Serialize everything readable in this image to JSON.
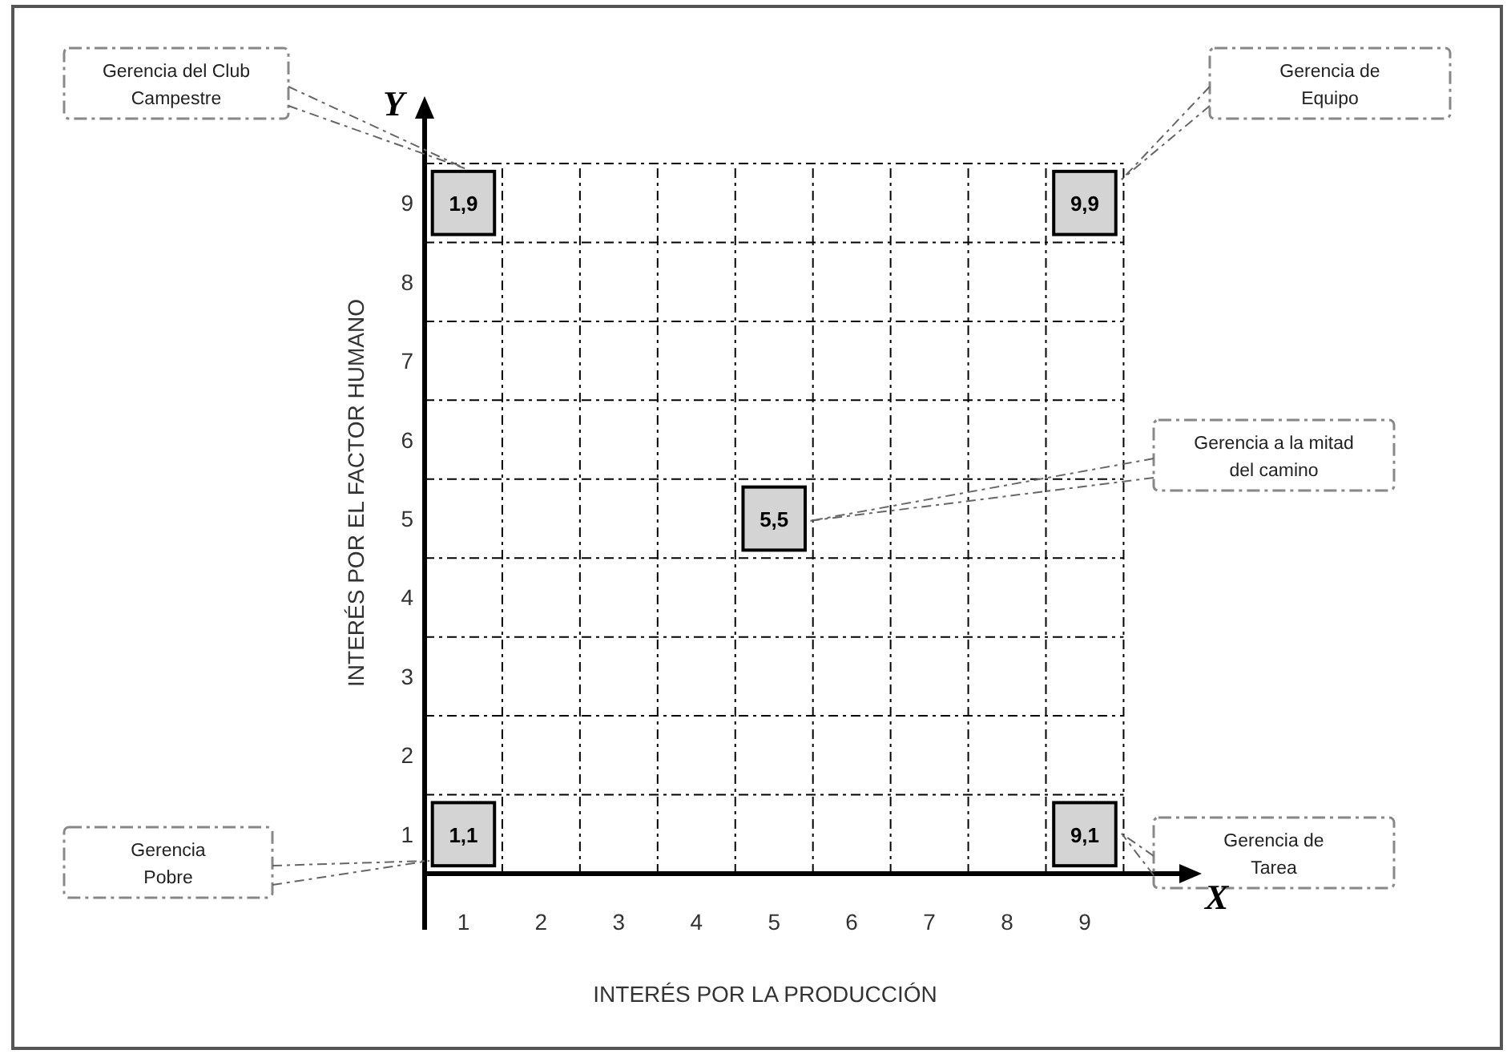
{
  "chart_data": {
    "type": "scatter",
    "xlabel": "INTERÉS POR LA PRODUCCIÓN",
    "ylabel": "INTERÉS POR EL FACTOR HUMANO",
    "series": [
      {
        "color": "#d4d4d4",
        "x": [
          1,
          1,
          5,
          9,
          9
        ],
        "values": [
          1,
          9,
          5,
          9,
          1
        ]
      }
    ],
    "marker": "square",
    "grid": true,
    "xlim": [
      0.5,
      10.3
    ],
    "ylim": [
      0.5,
      10.15
    ],
    "xticks": [
      {
        "value": 1.5,
        "label": null
      },
      {
        "value": 2.5,
        "label": null
      },
      {
        "value": 3.5,
        "label": null
      },
      {
        "value": 4.5,
        "label": null
      },
      {
        "value": 5.5,
        "label": null
      },
      {
        "value": 6.5,
        "label": null
      },
      {
        "value": 7.5,
        "label": null
      },
      {
        "value": 8.5,
        "label": null
      },
      {
        "value": 9.5,
        "label": null
      },
      1,
      2,
      3,
      4,
      5,
      6,
      7,
      8,
      9
    ],
    "yticks": [
      {
        "value": 1.5,
        "label": null
      },
      {
        "value": 2.5,
        "label": null
      },
      {
        "value": 3.5,
        "label": null
      },
      {
        "value": 4.5,
        "label": null
      },
      {
        "value": 5.5,
        "label": null
      },
      {
        "value": 6.5,
        "label": null
      },
      {
        "value": 7.5,
        "label": null
      },
      {
        "value": 8.5,
        "label": null
      },
      {
        "value": 9.5,
        "label": null
      },
      1,
      2,
      3,
      4,
      5,
      6,
      7,
      8,
      9
    ],
    "annotations": [
      {
        "text": "1,1",
        "x": 1,
        "y": 1
      },
      {
        "text": "1,9",
        "x": 1,
        "y": 9
      },
      {
        "text": "5,5",
        "x": 5,
        "y": 5
      },
      {
        "text": "9,9",
        "x": 9,
        "y": 9
      },
      {
        "text": "9,1",
        "x": 9,
        "y": 1
      },
      "Gerencia\nPobre",
      "Gerencia del Club\nCampestre",
      "Gerencia a la mitad\ndel camino",
      "Gerencia de\nEquipo",
      "Gerencia de\nTarea",
      "X",
      "Y"
    ]
  }
}
